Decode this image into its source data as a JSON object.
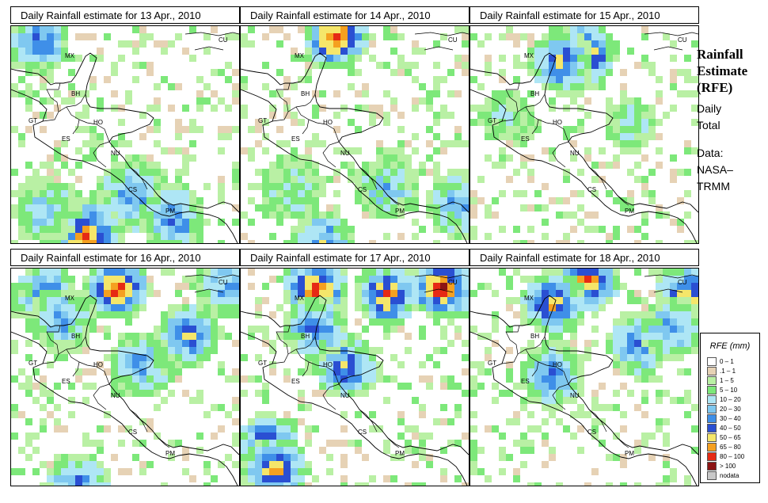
{
  "title_prefix": "Daily Rainfall estimate for",
  "panels": [
    {
      "date": "13 Apr., 2010"
    },
    {
      "date": "14 Apr., 2010"
    },
    {
      "date": "15 Apr., 2010"
    },
    {
      "date": "16 Apr., 2010"
    },
    {
      "date": "17 Apr., 2010"
    },
    {
      "date": "18 Apr., 2010"
    }
  ],
  "panel_titles": [
    "Daily Rainfall estimate for  13 Apr., 2010",
    "Daily Rainfall estimate for  14 Apr., 2010",
    "Daily Rainfall estimate for  15 Apr., 2010",
    "Daily Rainfall estimate for  16 Apr., 2010",
    "Daily Rainfall estimate for  17 Apr., 2010",
    "Daily Rainfall estimate for  18 Apr., 2010"
  ],
  "country_labels": [
    "CU",
    "MX",
    "BH",
    "GT",
    "HO",
    "ES",
    "NU",
    "CS",
    "PM"
  ],
  "sidebar": {
    "title_line1": "Rainfall",
    "title_line2": "Estimate",
    "title_line3": "(RFE)",
    "line1": "Daily",
    "line2": "Total",
    "line3": "Data:",
    "line4": "NASA–",
    "line5": "TRMM"
  },
  "legend": {
    "title": "RFE (mm)",
    "items": [
      {
        "label": "0 – 1",
        "color": "#ffffff"
      },
      {
        "label": ".1 – 1",
        "color": "#e6d2b5"
      },
      {
        "label": "1 – 5",
        "color": "#b9f0a4"
      },
      {
        "label": "5 – 10",
        "color": "#7de87a"
      },
      {
        "label": "10 – 20",
        "color": "#aee6f5"
      },
      {
        "label": "20 – 30",
        "color": "#7fc8f0"
      },
      {
        "label": "30 – 40",
        "color": "#3f8fe8"
      },
      {
        "label": "40 – 50",
        "color": "#2a4fd2"
      },
      {
        "label": "50 – 65",
        "color": "#f5e66a"
      },
      {
        "label": "65 – 80",
        "color": "#f5a020"
      },
      {
        "label": "80 – 100",
        "color": "#e62a14"
      },
      {
        "label": "> 100",
        "color": "#8c1414"
      },
      {
        "label": "nodata",
        "color": "#c8c8c8"
      }
    ]
  }
}
